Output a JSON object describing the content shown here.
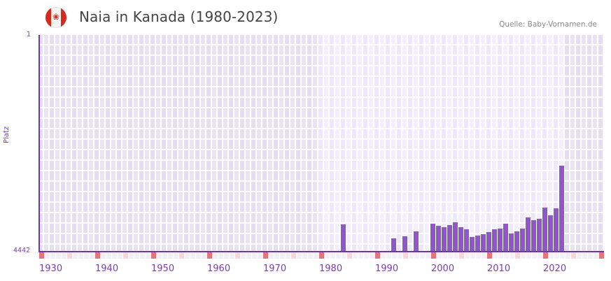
{
  "header": {
    "flag_icon": "canada-flag-icon",
    "title": "Naia in Kanada (1980-2023)",
    "source": "Quelle: Baby-Vornamen.de"
  },
  "axes": {
    "y_title": "Platz",
    "y_top_label": "1",
    "y_bottom_label": "4442",
    "x_labels": [
      "1930",
      "1940",
      "1950",
      "1960",
      "1970",
      "1980",
      "1990",
      "2000",
      "2010",
      "2020"
    ]
  },
  "colors": {
    "bar": "#8e58c8",
    "axis": "#6b3aa0",
    "decade_marker": "#e5737b",
    "half_decade_marker": "#f6d6df",
    "bg_outside": "#e3dfee",
    "bg_inside": "#efebf9"
  },
  "chart_data": {
    "type": "bar",
    "title": "Naia in Kanada (1980-2023)",
    "xlabel": "",
    "ylabel": "Platz",
    "ylim": [
      4442,
      1
    ],
    "y_inverted": true,
    "x_range": [
      1930,
      2030
    ],
    "data_range": [
      1980,
      2023
    ],
    "grid": true,
    "categories": [
      1984,
      1993,
      1995,
      1997,
      2000,
      2001,
      2002,
      2003,
      2004,
      2005,
      2006,
      2007,
      2008,
      2009,
      2010,
      2011,
      2012,
      2013,
      2014,
      2015,
      2016,
      2017,
      2018,
      2019,
      2020,
      2021,
      2022,
      2023
    ],
    "values": [
      3885,
      4171,
      4128,
      4028,
      3871,
      3914,
      3943,
      3900,
      3842,
      3943,
      3986,
      4143,
      4114,
      4086,
      4043,
      3986,
      3971,
      3871,
      4071,
      4028,
      3971,
      3742,
      3799,
      3771,
      3541,
      3699,
      3556,
      2682
    ]
  }
}
